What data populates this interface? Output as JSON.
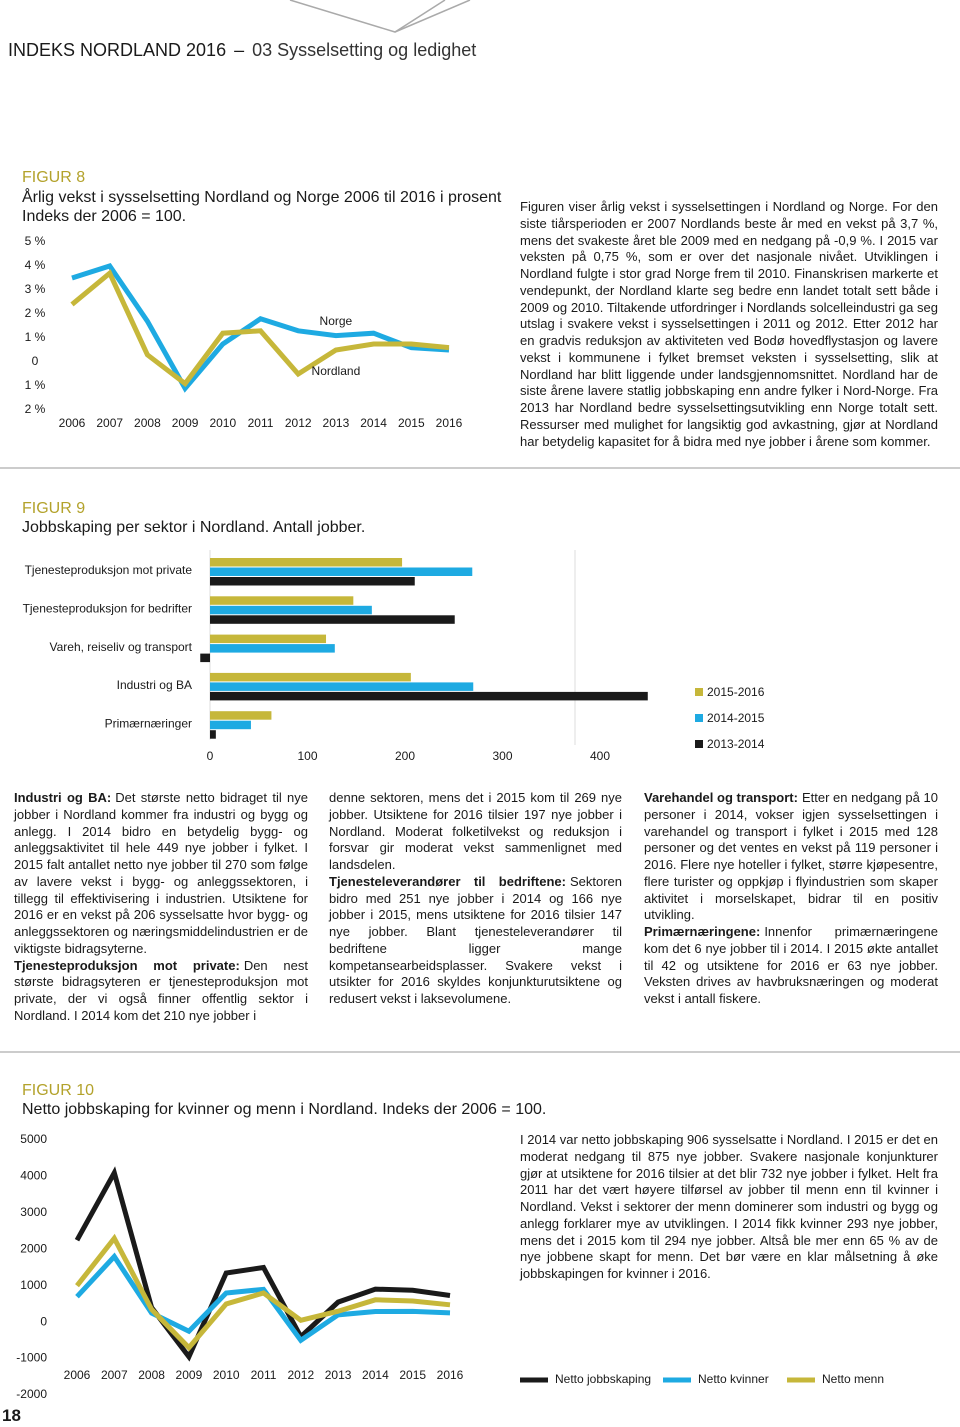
{
  "header": {
    "title": "INDEKS NORDLAND 2016",
    "separator": "–",
    "section": "03 Sysselsetting og ledighet"
  },
  "page_number": "18",
  "chart_data": [
    {
      "type": "line",
      "label": "FIGUR 8",
      "title": "Årlig vekst i sysselsetting Nordland og Norge 2006 til 2016 i prosent",
      "subtitle": "Indeks der 2006 = 100.",
      "categories": [
        "2006",
        "2007",
        "2008",
        "2009",
        "2010",
        "2011",
        "2012",
        "2013",
        "2014",
        "2015",
        "2016"
      ],
      "series": [
        {
          "name": "Norge",
          "color": "#1eaae2",
          "values": [
            3.5,
            4.0,
            1.7,
            -1.1,
            0.75,
            1.8,
            1.3,
            1.1,
            1.2,
            0.6,
            0.5
          ]
        },
        {
          "name": "Nordland",
          "color": "#c6b73a",
          "values": [
            2.4,
            3.7,
            0.3,
            -0.9,
            1.2,
            1.3,
            -0.5,
            0.5,
            0.75,
            0.75,
            0.6
          ]
        }
      ],
      "ylim": [
        -2,
        5
      ],
      "yticks": [
        {
          "value": 5,
          "label": "5 %"
        },
        {
          "value": 4,
          "label": "4 %"
        },
        {
          "value": 3,
          "label": "3 %"
        },
        {
          "value": 2,
          "label": "2 %"
        },
        {
          "value": 1,
          "label": "1 %"
        },
        0,
        {
          "value": -1,
          "label": "1 %"
        },
        {
          "value": -2,
          "label": "2 %"
        }
      ],
      "grid": false,
      "legend": "inline"
    },
    {
      "type": "hbar",
      "label": "FIGUR 9",
      "title": "Jobbskaping per sektor i Nordland. Antall jobber.",
      "categories": [
        "Tjenesteproduksjon mot private",
        "Tjenesteproduksjon for bedrifter",
        "Vareh, reiseliv og transport",
        "Industri og BA",
        "Primærnæringer"
      ],
      "series": [
        {
          "name": "2015-2016",
          "color": "#c6b73a",
          "values": [
            197,
            147,
            119,
            206,
            63
          ]
        },
        {
          "name": "2014-2015",
          "color": "#1eaae2",
          "values": [
            269,
            166,
            128,
            270,
            42
          ]
        },
        {
          "name": "2013-2014",
          "color": "#1a1a1a",
          "values": [
            210,
            251,
            -10,
            449,
            6
          ]
        }
      ],
      "xlim": [
        -20,
        400
      ],
      "xticks": [
        0,
        100,
        200,
        300,
        400
      ],
      "grid": false,
      "legend": "right"
    },
    {
      "type": "line",
      "label": "FIGUR 10",
      "title": "Netto jobbskaping for kvinner og menn i Nordland. Indeks der 2006 = 100.",
      "categories": [
        "2006",
        "2007",
        "2008",
        "2009",
        "2010",
        "2011",
        "2012",
        "2013",
        "2014",
        "2015",
        "2016"
      ],
      "series": [
        {
          "name": "Netto jobbskaping",
          "color": "#1a1a1a",
          "values": [
            2250,
            4100,
            400,
            -950,
            1350,
            1500,
            -400,
            550,
            906,
            875,
            732
          ]
        },
        {
          "name": "Netto kvinner",
          "color": "#1eaae2",
          "values": [
            700,
            1800,
            250,
            -250,
            800,
            900,
            -500,
            200,
            293,
            294,
            256
          ]
        },
        {
          "name": "Netto menn",
          "color": "#c6b73a",
          "values": [
            1000,
            2300,
            350,
            -700,
            500,
            800,
            50,
            300,
            613,
            581,
            476
          ]
        }
      ],
      "ylim": [
        -2000,
        5000
      ],
      "yticks": [
        5000,
        4000,
        3000,
        2000,
        1000,
        0,
        -1000,
        -2000
      ],
      "grid": false,
      "legend": "bottom"
    }
  ],
  "text": {
    "fig8": "Figuren viser årlig vekst i sysselsettingen i Nordland og Norge. For den siste tiårsperioden er 2007 Nordlands beste år med en vekst på 3,7 %, mens det svakeste året ble 2009 med en nedgang på -0,9 %. I 2015 var veksten på 0,75 %, som er over det nasjonale nivået. Utviklingen i Nordland fulgte i stor grad Norge frem til 2010. Finanskrisen markerte et vendepunkt, der Nordland klarte seg bedre enn landet totalt sett både i 2009 og 2010. Tiltakende utfordringer i Nordlands solcelleindustri ga seg utslag i svakere vekst i sysselsettingen i 2011 og 2012. Etter 2012 har en gradvis reduksjon av aktiviteten ved Bodø hovedflystasjon og lavere vekst i kommunene i fylket bremset veksten i sysselsetting, slik at Nordland har blitt liggende under landsgjennomsnittet. Nordland har de siste årene lavere statlig jobbskaping enn andre fylker i Nord-Norge. Fra 2013 har Nordland bedre sysselsettingsutvikling enn Norge totalt sett. Ressurser med mulighet for langsiktig god avkastning, gjør at Nordland har betydelig kapasitet for å bidra med nye jobber i årene som kommer.",
    "fig9": [
      [
        {
          "lead": "Industri og BA:",
          "body": "Det største netto bidraget til nye jobber i Nordland kommer fra industri og bygg og anlegg. I 2014 bidro en betydelig bygg- og anleggsaktivitet til hele 449 nye jobber i fylket. I 2015 falt antallet netto nye jobber til 270 som følge av lavere vekst i bygg- og anleggssektoren, i tillegg til effektivisering i industrien. Utsiktene for 2016 er en vekst på 206 sysselsatte hvor bygg- og anleggssektoren og næringsmiddelindustrien er de viktigste bidragsyterne."
        },
        {
          "lead": "Tjenesteproduksjon mot private:",
          "body": "Den nest største bidragsyteren er tjenesteproduksjon mot private, der vi også finner offentlig sektor i Nordland. I 2014 kom det 210 nye jobber i"
        }
      ],
      [
        {
          "body": "denne sektoren, mens det i 2015 kom til 269 nye jobber. Utsiktene for 2016 tilsier 197 nye jobber i Nordland. Moderat folketilvekst og reduksjon i forsvar gir moderat vekst sammenlignet med landsdelen."
        },
        {
          "lead": "Tjenesteleverandører til bedriftene:",
          "body": "Sektoren bidro med 251 nye jobber i 2014 og 166 nye jobber i 2015, mens utsiktene for 2016 tilsier 147 nye jobber. Blant tjenesteleverandører til bedriftene ligger mange kompetansearbeidsplasser. Svakere vekst i utsikter for 2016 skyldes konjunkturutsiktene og redusert vekst i laksevolumene."
        }
      ],
      [
        {
          "lead": "Varehandel og transport:",
          "body": "Etter en nedgang på 10 personer i 2014, vokser igjen sysselsettingen i varehandel og transport i fylket i 2015 med 128 personer og det ventes en vekst på 119 personer i 2016. Flere nye hoteller i fylket, større kjøpesentre, flere turister og oppkjøp i flyindustrien som skaper aktivitet i morselskapet, bidrar til en positiv utvikling."
        },
        {
          "lead": "Primærnæringene:",
          "body": "Innenfor primærnæringene kom det 6 nye jobber til i 2014. I 2015 økte antallet til 42 og utsiktene for 2016 er 63 nye jobber. Veksten drives av havbruksnæringen og moderat vekst i antall fiskere."
        }
      ]
    ],
    "fig10": "I 2014 var netto jobbskaping 906 sysselsatte i Nordland. I 2015 er det en moderat nedgang til 875 nye jobber. Svakere nasjonale konjunkturer gjør at utsiktene for 2016 tilsier at det blir 732 nye jobber i fylket. Helt fra 2011 har det vært høyere tilførsel av jobber til menn enn til kvinner i Nordland. Vekst i sektorer der menn dominerer som industri og bygg og anlegg forklarer mye av utviklingen. I 2014 fikk kvinner 293 nye jobber, mens det i 2015 kom til 294 nye jobber. Altså ble mer enn 65 % av de nye jobbene skapt for menn. Det bør være en klar målsetning å øke jobbskapingen for kvinner i 2016."
  }
}
